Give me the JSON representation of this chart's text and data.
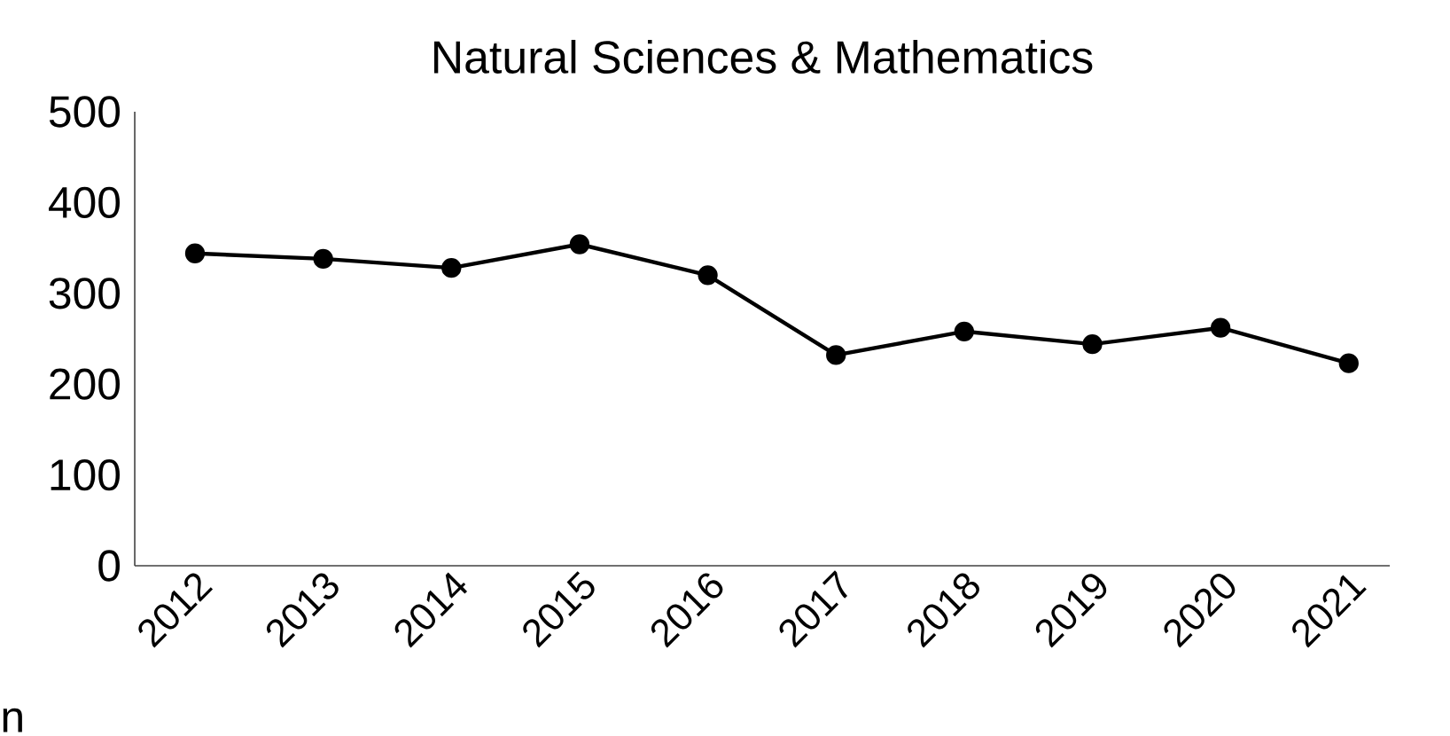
{
  "chart_data": {
    "type": "line",
    "title": "Natural Sciences & Mathematics",
    "categories": [
      "2012",
      "2013",
      "2014",
      "2015",
      "2016",
      "2017",
      "2018",
      "2019",
      "2020",
      "2021"
    ],
    "series": [
      {
        "color": "#000000",
        "values": [
          344,
          338,
          328,
          354,
          320,
          232,
          258,
          244,
          262,
          223
        ]
      }
    ],
    "ylim": [
      0,
      500
    ],
    "yticks": [
      0,
      100,
      200,
      300,
      400,
      500
    ],
    "grid": false,
    "marker": "circle",
    "line_style": "solid",
    "annotations": [
      "n"
    ]
  }
}
